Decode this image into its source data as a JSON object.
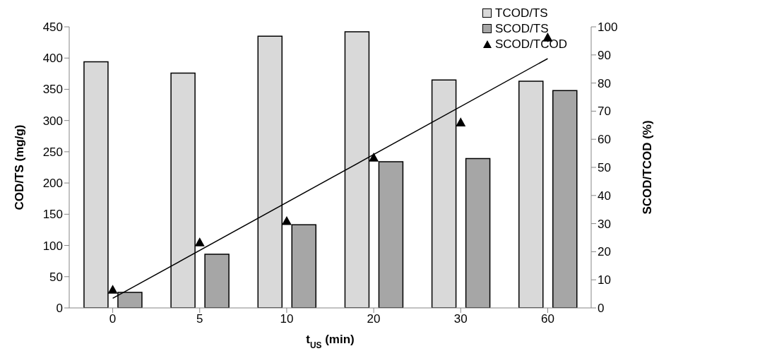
{
  "chart_data": {
    "type": "bar",
    "categories": [
      "0",
      "5",
      "10",
      "20",
      "30",
      "60"
    ],
    "xlabel": "t$_{US}$ (min)",
    "ylabel": "COD/TS (mg/g)",
    "y2label": "SCOD/TCOD (%)",
    "series": [
      {
        "name": "TCOD/TS",
        "color": "#d9d9d9",
        "values": [
          394,
          376,
          435,
          442,
          365,
          363
        ]
      },
      {
        "name": "SCOD/TS",
        "color": "#a6a6a6",
        "values": [
          25,
          86,
          133,
          234,
          239,
          348
        ]
      },
      {
        "name": "SCOD/TCOD",
        "type": "scatter",
        "axis": "y2",
        "color": "#000000",
        "marker": "triangle",
        "values": [
          6.5,
          23.3,
          30.9,
          53.5,
          66,
          96.2
        ]
      },
      {
        "type": "line",
        "axis": "y2",
        "color": "#000000",
        "x": [
          "0",
          "60"
        ],
        "values": [
          3.4,
          88.7
        ]
      }
    ],
    "ylim": [
      0,
      450
    ],
    "yticks": [
      0,
      50,
      100,
      150,
      200,
      250,
      300,
      350,
      400,
      450
    ],
    "y2lim": [
      0,
      100
    ],
    "y2ticks": [
      0,
      10,
      20,
      30,
      40,
      50,
      60,
      70,
      80,
      90,
      100
    ],
    "grid": false,
    "legend": "top right"
  }
}
